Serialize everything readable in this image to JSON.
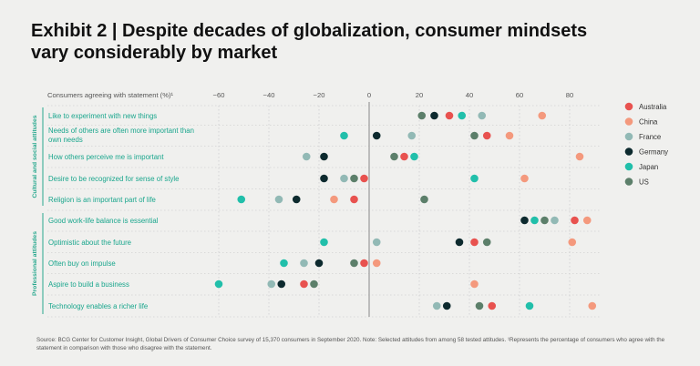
{
  "title": {
    "line1": "Exhibit 2 | Despite decades of globalization, consumer mindsets",
    "line2": "vary considerably by market"
  },
  "source": "Source: BCG Center for Customer Insight, Global Drivers of Consumer Choice survey of 15,370 consumers in September 2020. Note: Selected attitudes from among 58 tested attitudes. ¹Represents the percentage of consumers who agree with the statement in comparison with those who disagree with the statement.",
  "chart_data": {
    "type": "scatter",
    "title": "Despite decades of globalization, consumer mindsets vary considerably by market",
    "xlabel": "Consumers agreeing with statement (%)¹",
    "xlim": [
      -62,
      95
    ],
    "x_ticks": [
      -60,
      -40,
      -20,
      0,
      20,
      40,
      60,
      80
    ],
    "x_tick_labels": [
      "−60",
      "−40",
      "−20",
      "0",
      "20",
      "40",
      "60",
      "80"
    ],
    "legend": [
      {
        "name": "Australia",
        "color": "#e8524f"
      },
      {
        "name": "China",
        "color": "#f4997d"
      },
      {
        "name": "France",
        "color": "#92b9b5"
      },
      {
        "name": "Germany",
        "color": "#0d2a2e"
      },
      {
        "name": "Japan",
        "color": "#21bfaa"
      },
      {
        "name": "US",
        "color": "#5c7f6a"
      }
    ],
    "groups": [
      {
        "label": "Cultural and social attitudes",
        "color": "#2aa98f",
        "statements": [
          {
            "label": "Like to experiment with new things",
            "values": {
              "Australia": 32,
              "China": 69,
              "France": 45,
              "Germany": 26,
              "Japan": 37,
              "US": 21
            }
          },
          {
            "label": "Needs of others are often more important than own needs",
            "values": {
              "Australia": 47,
              "China": 56,
              "France": 17,
              "Germany": 3,
              "Japan": -10,
              "US": 42
            }
          },
          {
            "label": "How others perceive me is important",
            "values": {
              "Australia": 14,
              "China": 84,
              "France": -25,
              "Germany": -18,
              "Japan": 18,
              "US": 10
            }
          },
          {
            "label": "Desire to be recognized for sense of style",
            "values": {
              "Australia": -2,
              "China": 62,
              "France": -10,
              "Germany": -18,
              "Japan": 42,
              "US": -6
            }
          },
          {
            "label": "Religion is an important part of life",
            "values": {
              "Australia": -6,
              "China": -14,
              "France": -36,
              "Germany": -29,
              "Japan": -51,
              "US": 22
            }
          }
        ]
      },
      {
        "label": "Professional attitudes",
        "color": "#2aa98f",
        "statements": [
          {
            "label": "Good work-life balance is essential",
            "values": {
              "Australia": 82,
              "China": 87,
              "France": 74,
              "Germany": 62,
              "Japan": 66,
              "US": 70
            }
          },
          {
            "label": "Optimistic about the future",
            "values": {
              "Australia": 42,
              "China": 81,
              "France": 3,
              "Germany": 36,
              "Japan": -18,
              "US": 47
            }
          },
          {
            "label": "Often buy on impulse",
            "values": {
              "Australia": -2,
              "China": 3,
              "France": -26,
              "Germany": -20,
              "Japan": -34,
              "US": -6
            }
          },
          {
            "label": "Aspire to build a business",
            "values": {
              "Australia": -26,
              "China": 42,
              "France": -39,
              "Germany": -35,
              "Japan": -60,
              "US": -22
            }
          },
          {
            "label": "Technology enables a richer life",
            "values": {
              "Australia": 49,
              "China": 89,
              "France": 27,
              "Germany": 31,
              "Japan": 64,
              "US": 44
            }
          }
        ]
      }
    ]
  }
}
